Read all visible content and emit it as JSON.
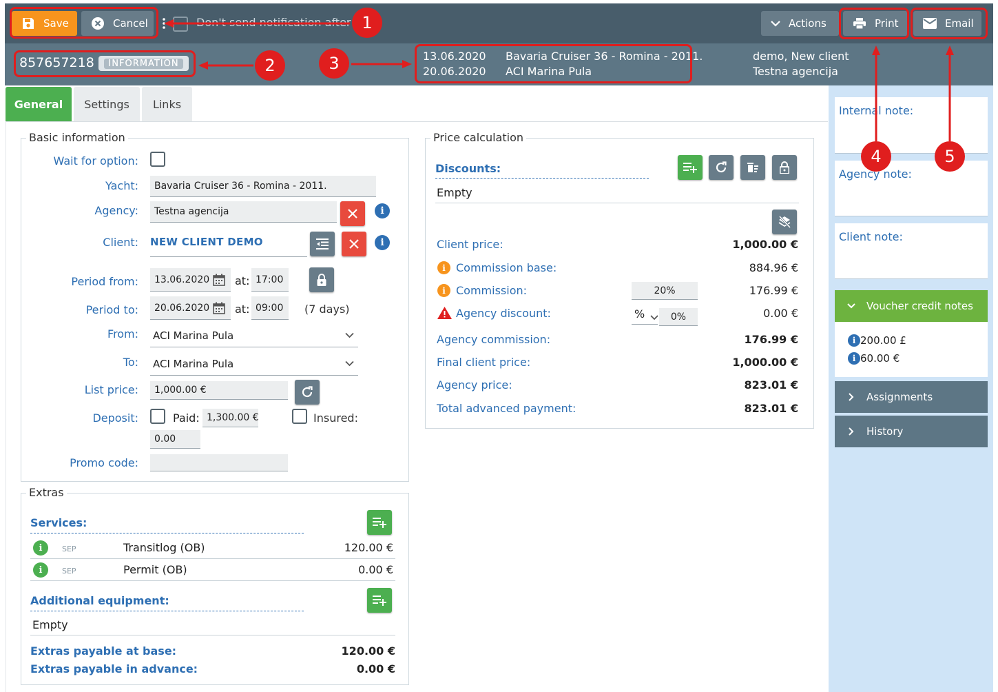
{
  "toolbar": {
    "save_label": "Save",
    "cancel_label": "Cancel",
    "notify_label": "Don't send notification after sa",
    "actions_label": "Actions",
    "print_label": "Print",
    "email_label": "Email"
  },
  "header": {
    "booking_id": "857657218",
    "status_badge": "INFORMATION",
    "date_from": "13.06.2020",
    "date_to": "20.06.2020",
    "yacht": "Bavaria Cruiser 36 - Romina - 2011.",
    "base": "ACI Marina Pula",
    "client": "demo, New client",
    "agency": "Testna agencija"
  },
  "tabs": [
    "General",
    "Settings",
    "Links"
  ],
  "basic": {
    "legend": "Basic information",
    "wait_label": "Wait for option:",
    "yacht_label": "Yacht:",
    "yacht_value": "Bavaria Cruiser 36  - Romina - 2011.",
    "agency_label": "Agency:",
    "agency_value": "Testna agencija",
    "client_label": "Client:",
    "client_value": "NEW CLIENT DEMO",
    "period_from_label": "Period from:",
    "period_from_date": "13.06.2020",
    "period_from_time": "17:00",
    "at_label": "at:",
    "period_to_label": "Period to:",
    "period_to_date": "20.06.2020",
    "period_to_time": "09:00",
    "days": "(7 days)",
    "from_label": "From:",
    "from_value": "ACI Marina Pula",
    "to_label": "To:",
    "to_value": "ACI Marina Pula",
    "list_price_label": "List price:",
    "list_price_value": "1,000.00 €",
    "deposit_label": "Deposit:",
    "paid_label": "Paid:",
    "paid_value": "1,300.00 €",
    "insured_label": "Insured:",
    "deposit_value": "0.00",
    "promo_label": "Promo code:",
    "promo_value": ""
  },
  "price": {
    "legend": "Price calculation",
    "discounts_label": "Discounts:",
    "discounts_value": "Empty",
    "client_price_label": "Client price:",
    "client_price": "1,000.00 €",
    "commission_base_label": "Commission base:",
    "commission_base": "884.96 €",
    "commission_label": "Commission:",
    "commission_pct": "20%",
    "commission": "176.99 €",
    "agency_discount_label": "Agency discount:",
    "agency_discount_unit": "%",
    "agency_discount_pct": "0%",
    "agency_discount": "0.00 €",
    "agency_commission_label": "Agency commission:",
    "agency_commission": "176.99 €",
    "final_client_price_label": "Final client price:",
    "final_client_price": "1,000.00 €",
    "agency_price_label": "Agency price:",
    "agency_price": "823.01 €",
    "total_adv_label": "Total advanced payment:",
    "total_adv": "823.01 €"
  },
  "extras": {
    "legend": "Extras",
    "services_label": "Services:",
    "services": [
      {
        "tag": "SEP",
        "name": "Transitlog (OB)",
        "price": "120.00 €"
      },
      {
        "tag": "SEP",
        "name": "Permit (OB)",
        "price": "0.00 €"
      }
    ],
    "equipment_label": "Additional equipment:",
    "equipment_value": "Empty",
    "payable_base_label": "Extras payable at base:",
    "payable_base": "120.00 €",
    "payable_adv_label": "Extras payable in advance:",
    "payable_adv": "0.00 €"
  },
  "sidebar": {
    "internal_note": "Internal note:",
    "agency_note": "Agency note:",
    "client_note": "Client note:",
    "voucher_title": "Voucher credit notes",
    "vouchers": [
      "200.00 £",
      "60.00 €"
    ],
    "assignments": "Assignments",
    "history": "History"
  },
  "callouts": [
    "1",
    "2",
    "3",
    "4",
    "5"
  ],
  "colors": {
    "toolbar": "#485d6b",
    "infobar": "#5d7685",
    "accent_orange": "#f7941d",
    "accent_green": "#4caf50",
    "link_blue": "#2e6fb3",
    "danger_red": "#e84a3d",
    "callout_red": "#e01e1e"
  }
}
